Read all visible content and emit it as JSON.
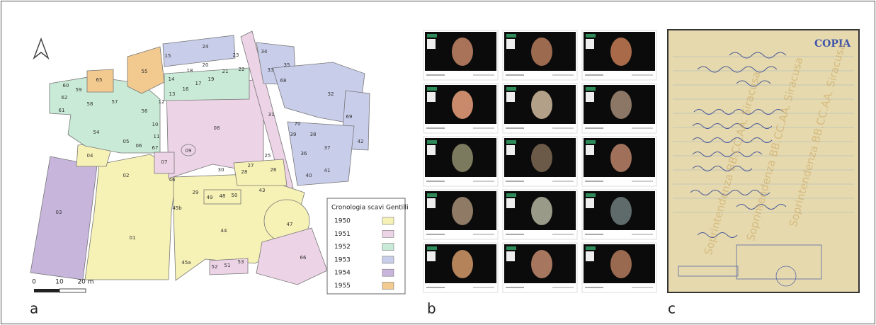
{
  "panels": {
    "a": "a",
    "b": "b",
    "c": "c"
  },
  "map": {
    "rooms": [
      "15",
      "24",
      "34",
      "23",
      "22",
      "21",
      "19",
      "20",
      "18",
      "14",
      "17",
      "16",
      "13",
      "12",
      "33",
      "35",
      "68",
      "32",
      "31",
      "08",
      "55",
      "65",
      "60",
      "62",
      "61",
      "59",
      "58",
      "57",
      "56",
      "10",
      "11",
      "67",
      "54",
      "05",
      "06",
      "09",
      "07",
      "04",
      "02",
      "03",
      "01",
      "46",
      "70",
      "69",
      "39",
      "38",
      "36",
      "37",
      "42",
      "40",
      "41",
      "25",
      "26",
      "27",
      "28",
      "30",
      "29",
      "49",
      "48",
      "50",
      "43",
      "45b",
      "47",
      "44",
      "45a",
      "66",
      "52",
      "51",
      "53"
    ],
    "scale": [
      "0",
      "10",
      "20 m"
    ],
    "legend": {
      "title": "Cronologia scavi Gentilli",
      "entries": [
        {
          "label": "1950",
          "color": "#f6f1b4"
        },
        {
          "label": "1951",
          "color": "#ecd3e6"
        },
        {
          "label": "1952",
          "color": "#c9ead6"
        },
        {
          "label": "1953",
          "color": "#c8cdea"
        },
        {
          "label": "1954",
          "color": "#c8b5dc"
        },
        {
          "label": "1955",
          "color": "#f2c98f"
        }
      ]
    }
  },
  "document": {
    "stamp": "COPIA",
    "watermark": "Soprintendenza BB.CC.AA. Siracusa"
  }
}
